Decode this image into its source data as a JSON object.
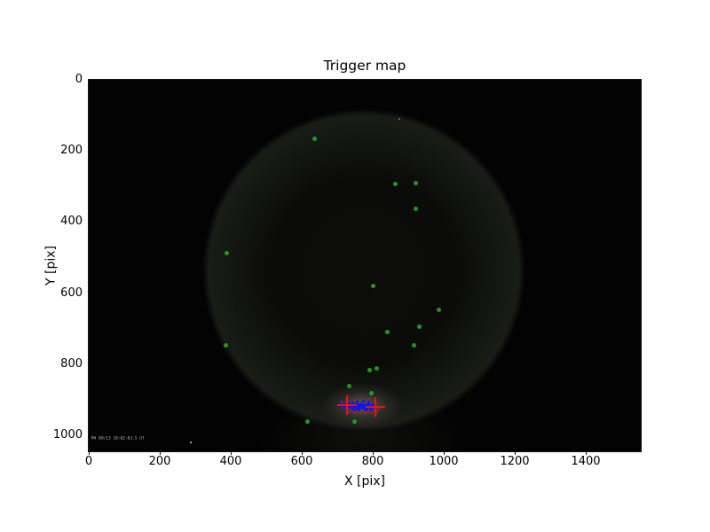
{
  "title": "Trigger map",
  "figure": {
    "background": "#ffffff",
    "plot_background": "#030303",
    "frame_color": "#141414"
  },
  "axes": {
    "xlabel": "X [pix]",
    "ylabel": "Y [pix]",
    "x_tick_labels": [
      "0",
      "200",
      "400",
      "600",
      "800",
      "1000",
      "1200",
      "1400"
    ],
    "x_tick_values": [
      0,
      200,
      400,
      600,
      800,
      1000,
      1200,
      1400
    ],
    "y_tick_labels": [
      "0",
      "200",
      "400",
      "600",
      "800",
      "1000"
    ],
    "y_tick_values": [
      0,
      200,
      400,
      600,
      800,
      1000
    ],
    "x_range": [
      0,
      1555
    ],
    "y_range": [
      0,
      1045
    ],
    "y_inverted": true
  },
  "overlay": {
    "camera_timestamp": "M4 09/13 10:02:03.5 UT"
  },
  "chart_data": {
    "type": "scatter",
    "title": "Trigger map",
    "xlabel": "X [pix]",
    "ylabel": "Y [pix]",
    "xlim": [
      0,
      1555
    ],
    "ylim": [
      1045,
      0
    ],
    "grid": false,
    "legend": false,
    "background_note": "dark all-sky camera frame with faint circular field-of-view vignette and glow at trigger cluster",
    "series": [
      {
        "name": "star-detections",
        "marker": "circle",
        "size": 5,
        "color": "#229622",
        "points": [
          [
            636,
            165
          ],
          [
            863,
            292
          ],
          [
            922,
            291
          ],
          [
            922,
            364
          ],
          [
            388,
            487
          ],
          [
            801,
            581
          ],
          [
            986,
            647
          ],
          [
            931,
            694
          ],
          [
            842,
            710
          ],
          [
            916,
            747
          ],
          [
            387,
            746
          ],
          [
            812,
            812
          ],
          [
            790,
            818
          ],
          [
            734,
            861
          ],
          [
            796,
            882
          ],
          [
            617,
            962
          ],
          [
            748,
            962
          ]
        ]
      },
      {
        "name": "trigger-cluster",
        "marker": "circle",
        "size": 3,
        "color": "#0b16ee",
        "points": [
          [
            706,
            914
          ],
          [
            710,
            918
          ],
          [
            714,
            911
          ],
          [
            717,
            916
          ],
          [
            720,
            920
          ],
          [
            723,
            913
          ],
          [
            726,
            918
          ],
          [
            729,
            922
          ],
          [
            731,
            909
          ],
          [
            733,
            916
          ],
          [
            736,
            920
          ],
          [
            738,
            913
          ],
          [
            740,
            917
          ],
          [
            742,
            924
          ],
          [
            744,
            910
          ],
          [
            746,
            919
          ],
          [
            748,
            914
          ],
          [
            750,
            922
          ],
          [
            752,
            917
          ],
          [
            754,
            926
          ],
          [
            756,
            912
          ],
          [
            758,
            919
          ],
          [
            760,
            915
          ],
          [
            762,
            923
          ],
          [
            764,
            918
          ],
          [
            766,
            911
          ],
          [
            768,
            921
          ],
          [
            770,
            916
          ],
          [
            772,
            925
          ],
          [
            774,
            913
          ],
          [
            776,
            919
          ],
          [
            778,
            923
          ],
          [
            780,
            915
          ],
          [
            782,
            920
          ],
          [
            784,
            926
          ],
          [
            786,
            917
          ],
          [
            788,
            912
          ],
          [
            790,
            921
          ],
          [
            792,
            916
          ],
          [
            794,
            924
          ],
          [
            796,
            918
          ],
          [
            798,
            913
          ],
          [
            800,
            921
          ],
          [
            802,
            917
          ],
          [
            804,
            923
          ],
          [
            806,
            918
          ],
          [
            725,
            928
          ],
          [
            745,
            930
          ],
          [
            762,
            929
          ],
          [
            778,
            930
          ],
          [
            793,
            929
          ],
          [
            757,
            906
          ],
          [
            773,
            904
          ],
          [
            788,
            907
          ]
        ]
      },
      {
        "name": "trigger-fragments",
        "marker": "square",
        "size": 2,
        "color": "#c41414",
        "points": [
          [
            733,
            936
          ],
          [
            742,
            932
          ],
          [
            750,
            938
          ],
          [
            758,
            933
          ],
          [
            766,
            939
          ],
          [
            774,
            934
          ],
          [
            781,
            939
          ],
          [
            789,
            932
          ],
          [
            797,
            937
          ],
          [
            805,
            930
          ],
          [
            812,
            934
          ],
          [
            818,
            925
          ],
          [
            752,
            901
          ],
          [
            770,
            897
          ],
          [
            787,
            900
          ],
          [
            712,
            906
          ]
        ]
      },
      {
        "name": "centroid-crosses",
        "marker": "plus",
        "size": 22,
        "thickness": 2,
        "color": "#ee1111",
        "points": [
          [
            727,
            915
          ],
          [
            808,
            920
          ]
        ]
      },
      {
        "name": "noise-specks",
        "marker": "circle",
        "size": 2,
        "color": "#ffffff",
        "opacities": [
          0.45,
          0.85
        ],
        "points": [
          [
            875,
            110
          ],
          [
            288,
            1020
          ]
        ]
      }
    ]
  }
}
